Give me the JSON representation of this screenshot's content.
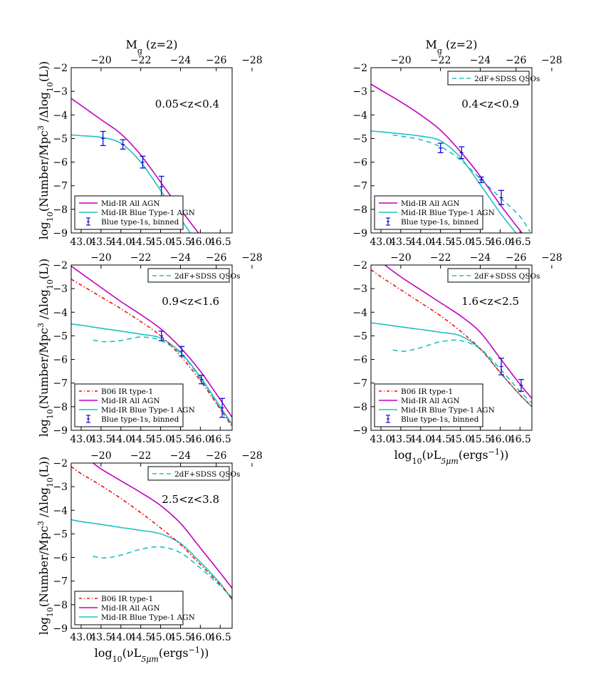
{
  "figure": {
    "top_axis_label": "M",
    "top_axis_sub": "g",
    "top_axis_suffix": " (z=2)",
    "ylabel_prefix": "log",
    "ylabel_sub": "10",
    "ylabel_main": "(Number/Mpc",
    "ylabel_sup": "3",
    "ylabel_mid": " /Δlog",
    "ylabel_sub2": "10",
    "ylabel_end": "(L))",
    "xlabel_prefix": "log",
    "xlabel_sub": "10",
    "xlabel_main": "(νL",
    "xlabel_sub2": "5μm",
    "xlabel_mid": "(ergs",
    "xlabel_sup": "−1",
    "xlabel_end": "))"
  },
  "colors": {
    "all_agn": "#c000c0",
    "blue_type1": "#20c0c0",
    "qso": "#20c0c0",
    "b06": "#ee1111",
    "binned": "#1010d0"
  },
  "chart_data": [
    {
      "type": "line",
      "panel": "0.05<z<0.4",
      "zlabel": "0.05<z<0.4",
      "xlim": [
        42.75,
        46.8
      ],
      "ylim": [
        -9,
        -2
      ],
      "xticks": [
        "43.0",
        "43.5",
        "44.0",
        "44.5",
        "45.0",
        "45.5",
        "46.0",
        "46.5"
      ],
      "yticks": [
        "−9",
        "−8",
        "−7",
        "−6",
        "−5",
        "−4",
        "−3",
        "−2"
      ],
      "top_ticks": [
        "−20",
        "−22",
        "−24",
        "−26",
        "−28"
      ],
      "legend_top": null,
      "legend": [
        "Mid-IR All AGN",
        "Mid-IR Blue Type-1 AGN",
        "Blue type-1s, binned"
      ],
      "series": [
        {
          "name": "Mid-IR All AGN",
          "key": "all_agn",
          "x": [
            42.75,
            43.0,
            43.5,
            44.0,
            44.5,
            45.0,
            45.5,
            45.95
          ],
          "y": [
            -3.3,
            -3.6,
            -4.2,
            -4.8,
            -5.7,
            -6.85,
            -8.0,
            -9.0
          ]
        },
        {
          "name": "Mid-IR Blue Type-1 AGN",
          "key": "blue_type1",
          "x": [
            42.75,
            43.0,
            43.5,
            44.0,
            44.5,
            45.0,
            45.5,
            45.75
          ],
          "y": [
            -4.85,
            -4.88,
            -4.95,
            -5.2,
            -6.0,
            -7.2,
            -8.4,
            -9.0
          ]
        },
        {
          "name": "Blue type-1s, binned",
          "key": "binned",
          "kind": "errorbar",
          "x": [
            43.55,
            44.05,
            44.55,
            45.02
          ],
          "y": [
            -5.0,
            -5.25,
            -6.0,
            -7.05
          ],
          "err": [
            0.3,
            0.2,
            0.25,
            0.45
          ]
        }
      ]
    },
    {
      "type": "line",
      "panel": "0.4<z<0.9",
      "zlabel": "0.4<z<0.9",
      "xlim": [
        42.75,
        46.8
      ],
      "ylim": [
        -9,
        -2
      ],
      "xticks": [
        "43.0",
        "43.5",
        "44.0",
        "44.5",
        "45.0",
        "45.5",
        "46.0",
        "46.5"
      ],
      "yticks": [
        "−9",
        "−8",
        "−7",
        "−6",
        "−5",
        "−4",
        "−3",
        "−2"
      ],
      "top_ticks": [
        "−20",
        "−22",
        "−24",
        "−26",
        "−28"
      ],
      "legend_top": "2dF+SDSS QSOs",
      "legend": [
        "Mid-IR All AGN",
        "Mid-IR Blue Type-1 AGN",
        "Blue type-1s, binned"
      ],
      "series": [
        {
          "name": "Mid-IR All AGN",
          "key": "all_agn",
          "x": [
            42.75,
            43.0,
            43.5,
            44.0,
            44.5,
            45.0,
            45.5,
            46.0,
            46.55
          ],
          "y": [
            -2.7,
            -2.95,
            -3.45,
            -4.0,
            -4.65,
            -5.55,
            -6.6,
            -7.8,
            -9.0
          ]
        },
        {
          "name": "Mid-IR Blue Type-1 AGN",
          "key": "blue_type1",
          "x": [
            42.75,
            43.0,
            43.5,
            44.0,
            44.5,
            45.0,
            45.5,
            46.0,
            46.4
          ],
          "y": [
            -4.68,
            -4.72,
            -4.8,
            -4.9,
            -5.1,
            -5.8,
            -6.95,
            -8.15,
            -9.0
          ]
        },
        {
          "name": "2dF+SDSS QSOs",
          "key": "qso",
          "dashed": true,
          "x": [
            43.3,
            43.5,
            44.0,
            44.5,
            45.0,
            45.5,
            46.0,
            46.5,
            46.75
          ],
          "y": [
            -4.85,
            -4.9,
            -5.05,
            -5.35,
            -5.9,
            -6.7,
            -7.5,
            -8.3,
            -8.95
          ]
        },
        {
          "name": "Blue type-1s, binned",
          "key": "binned",
          "kind": "errorbar",
          "x": [
            44.5,
            45.03,
            45.52,
            46.03
          ],
          "y": [
            -5.4,
            -5.6,
            -6.75,
            -7.5
          ],
          "err": [
            0.2,
            0.25,
            0.12,
            0.3
          ]
        }
      ]
    },
    {
      "type": "line",
      "panel": "0.9<z<1.6",
      "zlabel": "0.9<z<1.6",
      "xlim": [
        42.75,
        46.8
      ],
      "ylim": [
        -9,
        -2
      ],
      "xticks": [
        "43.0",
        "43.5",
        "44.0",
        "44.5",
        "45.0",
        "45.5",
        "46.0",
        "46.5"
      ],
      "yticks": [
        "−9",
        "−8",
        "−7",
        "−6",
        "−5",
        "−4",
        "−3",
        "−2"
      ],
      "top_ticks": [
        "−20",
        "−22",
        "−24",
        "−26",
        "−28"
      ],
      "legend_top": "2dF+SDSS QSOs",
      "legend": [
        "B06 IR type-1",
        "Mid-IR All AGN",
        "Mid-IR Blue Type-1 AGN",
        "Blue type-1s, binned"
      ],
      "series": [
        {
          "name": "Mid-IR All AGN",
          "key": "all_agn",
          "x": [
            42.75,
            43.0,
            43.5,
            44.0,
            44.5,
            45.0,
            45.5,
            46.0,
            46.5,
            46.8
          ],
          "y": [
            -2.05,
            -2.35,
            -2.95,
            -3.55,
            -4.1,
            -4.7,
            -5.5,
            -6.5,
            -7.7,
            -8.45
          ]
        },
        {
          "name": "Mid-IR Blue Type-1 AGN",
          "key": "blue_type1",
          "x": [
            42.75,
            43.0,
            43.5,
            44.0,
            44.5,
            45.0,
            45.5,
            46.0,
            46.5,
            46.8
          ],
          "y": [
            -4.5,
            -4.55,
            -4.68,
            -4.8,
            -4.93,
            -5.1,
            -5.7,
            -6.75,
            -8.0,
            -8.75
          ]
        },
        {
          "name": "2dF+SDSS QSOs",
          "key": "qso",
          "dashed": true,
          "x": [
            43.3,
            43.6,
            44.0,
            44.5,
            45.0,
            45.5,
            46.0,
            46.5,
            46.8
          ],
          "y": [
            -5.18,
            -5.25,
            -5.2,
            -5.05,
            -5.2,
            -5.75,
            -6.8,
            -8.1,
            -8.75
          ]
        },
        {
          "name": "B06 IR type-1",
          "key": "b06",
          "dashdot": true,
          "x": [
            42.75,
            43.0,
            43.5,
            44.0,
            44.5,
            45.0,
            45.5,
            46.0,
            46.5,
            46.8
          ],
          "y": [
            -2.6,
            -2.85,
            -3.35,
            -3.85,
            -4.4,
            -5.0,
            -5.85,
            -6.9,
            -8.1,
            -8.85
          ]
        },
        {
          "name": "Blue type-1s, binned",
          "key": "binned",
          "kind": "errorbar",
          "x": [
            45.02,
            45.53,
            46.03,
            46.55
          ],
          "y": [
            -5.0,
            -5.65,
            -6.85,
            -8.05
          ],
          "err": [
            0.2,
            0.2,
            0.18,
            0.4
          ]
        }
      ]
    },
    {
      "type": "line",
      "panel": "1.6<z<2.5",
      "zlabel": "1.6<z<2.5",
      "xlim": [
        42.75,
        46.8
      ],
      "ylim": [
        -9,
        -2
      ],
      "xticks": [
        "43.0",
        "43.5",
        "44.0",
        "44.5",
        "45.0",
        "45.5",
        "46.0",
        "46.5"
      ],
      "yticks": [
        "−9",
        "−8",
        "−7",
        "−6",
        "−5",
        "−4",
        "−3",
        "−2"
      ],
      "top_ticks": [
        "−20",
        "−22",
        "−24",
        "−26",
        "−28"
      ],
      "legend_top": "2dF+SDSS QSOs",
      "legend": [
        "B06 IR type-1",
        "Mid-IR All AGN",
        "Mid-IR Blue Type-1 AGN",
        "Blue type-1s, binned"
      ],
      "series": [
        {
          "name": "Mid-IR All AGN",
          "key": "all_agn",
          "x": [
            43.1,
            43.5,
            44.0,
            44.5,
            45.0,
            45.5,
            46.0,
            46.5,
            46.8
          ],
          "y": [
            -2.0,
            -2.5,
            -3.05,
            -3.6,
            -4.15,
            -4.85,
            -5.95,
            -7.05,
            -7.65
          ]
        },
        {
          "name": "Mid-IR Blue Type-1 AGN",
          "key": "blue_type1",
          "x": [
            42.75,
            43.0,
            43.5,
            44.0,
            44.5,
            45.0,
            45.5,
            46.0,
            46.5,
            46.8
          ],
          "y": [
            -4.45,
            -4.5,
            -4.62,
            -4.73,
            -4.85,
            -5.0,
            -5.55,
            -6.55,
            -7.5,
            -8.0
          ]
        },
        {
          "name": "2dF+SDSS QSOs",
          "key": "qso",
          "dashed": true,
          "x": [
            43.3,
            43.6,
            44.0,
            44.5,
            45.0,
            45.5,
            46.0,
            46.5,
            46.8
          ],
          "y": [
            -5.6,
            -5.65,
            -5.5,
            -5.25,
            -5.2,
            -5.55,
            -6.4,
            -7.35,
            -7.85
          ]
        },
        {
          "name": "B06 IR type-1",
          "key": "b06",
          "dashdot": true,
          "x": [
            42.75,
            43.0,
            43.5,
            44.0,
            44.5,
            45.0,
            45.5,
            46.0,
            46.5,
            46.8
          ],
          "y": [
            -2.2,
            -2.5,
            -3.05,
            -3.6,
            -4.15,
            -4.8,
            -5.55,
            -6.55,
            -7.5,
            -8.0
          ]
        },
        {
          "name": "Blue type-1s, binned",
          "key": "binned",
          "kind": "errorbar",
          "x": [
            46.03,
            46.53
          ],
          "y": [
            -6.3,
            -7.1
          ],
          "err": [
            0.35,
            0.25
          ]
        }
      ]
    },
    {
      "type": "line",
      "panel": "2.5<z<3.8",
      "zlabel": "2.5<z<3.8",
      "xlim": [
        42.75,
        46.8
      ],
      "ylim": [
        -9,
        -2
      ],
      "xticks": [
        "43.0",
        "43.5",
        "44.0",
        "44.5",
        "45.0",
        "45.5",
        "46.0",
        "46.5"
      ],
      "yticks": [
        "−9",
        "−8",
        "−7",
        "−6",
        "−5",
        "−4",
        "−3",
        "−2"
      ],
      "top_ticks": [
        "−20",
        "−22",
        "−24",
        "−26",
        "−28"
      ],
      "legend_top": "2dF+SDSS QSOs",
      "legend": [
        "B06 IR type-1",
        "Mid-IR All AGN",
        "Mid-IR Blue Type-1 AGN"
      ],
      "series": [
        {
          "name": "Mid-IR All AGN",
          "key": "all_agn",
          "x": [
            43.3,
            43.5,
            44.0,
            44.5,
            45.0,
            45.5,
            46.0,
            46.5,
            46.8
          ],
          "y": [
            -2.0,
            -2.25,
            -2.75,
            -3.25,
            -3.8,
            -4.55,
            -5.6,
            -6.65,
            -7.3
          ]
        },
        {
          "name": "Mid-IR Blue Type-1 AGN",
          "key": "blue_type1",
          "x": [
            42.75,
            43.0,
            43.5,
            44.0,
            44.5,
            45.0,
            45.5,
            46.0,
            46.5,
            46.8
          ],
          "y": [
            -4.4,
            -4.48,
            -4.6,
            -4.73,
            -4.85,
            -5.0,
            -5.4,
            -6.2,
            -7.1,
            -7.8
          ]
        },
        {
          "name": "2dF+SDSS QSOs",
          "key": "qso",
          "dashed": true,
          "x": [
            43.3,
            43.6,
            44.0,
            44.5,
            45.0,
            45.5,
            46.0,
            46.5,
            46.8
          ],
          "y": [
            -5.95,
            -6.02,
            -5.9,
            -5.65,
            -5.55,
            -5.8,
            -6.45,
            -7.2,
            -7.7
          ]
        },
        {
          "name": "B06 IR type-1",
          "key": "b06",
          "dashdot": true,
          "x": [
            42.75,
            43.0,
            43.5,
            44.0,
            44.5,
            45.0,
            45.5,
            46.0,
            46.5,
            46.8
          ],
          "y": [
            -2.15,
            -2.45,
            -2.95,
            -3.5,
            -4.1,
            -4.75,
            -5.45,
            -6.3,
            -7.15,
            -7.75
          ]
        }
      ]
    }
  ]
}
